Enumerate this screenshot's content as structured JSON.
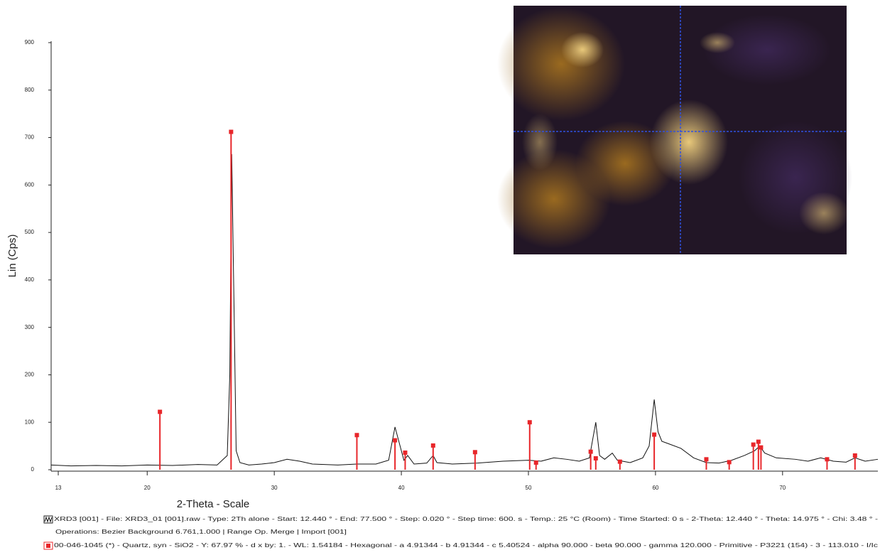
{
  "chart_data": {
    "type": "line",
    "xlabel": "2-Theta - Scale",
    "ylabel": "Lin (Cps)",
    "xlim": [
      12.44,
      77.5
    ],
    "ylim": [
      0,
      900
    ],
    "xticks": [
      13,
      20,
      30,
      40,
      50,
      60,
      70
    ],
    "yticks": [
      0,
      100,
      200,
      300,
      400,
      500,
      600,
      700,
      800,
      900
    ],
    "legend_extra": "Operations: Bezier Background 6.761,1.000 | Range Op. Merge | Import [001]",
    "series": [
      {
        "name": "XRD3 [001] - File: XRD3_01 [001].raw - Type: 2Th alone - Start: 12.440 ° - End: 77.500 ° - Step: 0.020 ° - Step time: 600. s - Temp.: 25 °C (Room) - Time Started: 0 s - 2-Theta: 12.440 ° - Theta: 14.975 ° - Chi: 3.48 ° -",
        "color": "#111111",
        "style": "line",
        "x": [
          12.44,
          14,
          16,
          18,
          20,
          22,
          24,
          25.5,
          26.3,
          26.5,
          26.65,
          26.8,
          27.0,
          27.3,
          28,
          29,
          30,
          31,
          32,
          33,
          35,
          36.5,
          38,
          39,
          39.5,
          39.8,
          40.2,
          40.5,
          41,
          42,
          42.5,
          42.8,
          44,
          46,
          48,
          50,
          51,
          52,
          53,
          54,
          54.8,
          55.3,
          55.6,
          56,
          56.6,
          57,
          58,
          59,
          59.5,
          59.9,
          60.2,
          60.5,
          61,
          62,
          63,
          64,
          65,
          66,
          67,
          67.8,
          68.2,
          68.6,
          69.5,
          71,
          72,
          73,
          74,
          75,
          75.7,
          76.5,
          77.5
        ],
        "values": [
          10,
          8,
          9,
          8,
          10,
          9,
          11,
          10,
          30,
          200,
          665,
          400,
          40,
          15,
          10,
          12,
          15,
          22,
          18,
          12,
          10,
          12,
          12,
          20,
          90,
          60,
          20,
          30,
          12,
          14,
          30,
          15,
          12,
          14,
          18,
          20,
          18,
          25,
          22,
          18,
          25,
          100,
          30,
          22,
          35,
          20,
          15,
          25,
          50,
          148,
          80,
          60,
          55,
          45,
          25,
          15,
          14,
          20,
          30,
          40,
          50,
          35,
          25,
          22,
          18,
          25,
          18,
          16,
          25,
          18,
          22
        ]
      },
      {
        "name": "00-046-1045 (*) - Quartz, syn - SiO2 - Y: 67.97 % - d x by: 1. - WL: 1.54184 - Hexagonal - a 4.91344 - b 4.91344 - c 5.40524 - alpha 90.000 - beta 90.000 - gamma 120.000 - Primitive - P3221 (154) - 3 - 113.010 - I/Ic",
        "color": "#e8262a",
        "style": "stick",
        "x": [
          21.0,
          26.6,
          36.5,
          39.5,
          40.3,
          42.5,
          45.8,
          50.1,
          50.6,
          54.9,
          55.3,
          57.2,
          59.9,
          64.0,
          65.8,
          67.7,
          68.1,
          68.3,
          73.5,
          75.7
        ],
        "values": [
          122,
          712,
          73,
          62,
          36,
          51,
          37,
          100,
          15,
          38,
          24,
          17,
          74,
          22,
          16,
          53,
          59,
          47,
          22,
          30
        ]
      }
    ]
  }
}
